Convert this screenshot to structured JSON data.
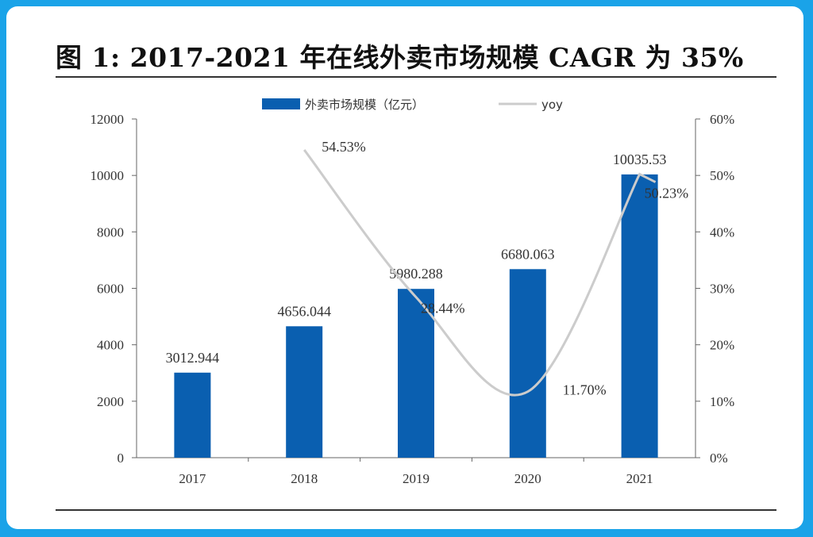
{
  "chart_data": {
    "type": "bar",
    "title": "图 1: 2017-2021 年在线外卖市场规模 CAGR 为 35%",
    "categories": [
      "2017",
      "2018",
      "2019",
      "2020",
      "2021"
    ],
    "series": [
      {
        "name": "外卖市场规模（亿元）",
        "type": "bar",
        "axis": "left",
        "values": [
          3012.944,
          4656.044,
          5980.288,
          6680.063,
          10035.53
        ],
        "labels": [
          "3012.944",
          "4656.044",
          "5980.288",
          "6680.063",
          "10035.53"
        ],
        "color": "#0a5fb0"
      },
      {
        "name": "yoy",
        "type": "line",
        "axis": "right",
        "values": [
          null,
          54.53,
          28.44,
          11.7,
          50.23
        ],
        "labels": [
          "",
          "54.53%",
          "28.44%",
          "11.70%",
          "50.23%"
        ],
        "color": "#cccccc"
      }
    ],
    "y_left": {
      "lim": [
        0,
        12000
      ],
      "ticks": [
        "0",
        "2000",
        "4000",
        "6000",
        "8000",
        "10000",
        "12000"
      ]
    },
    "y_right": {
      "lim": [
        0,
        60
      ],
      "ticks": [
        "0%",
        "10%",
        "20%",
        "30%",
        "40%",
        "50%",
        "60%"
      ]
    },
    "legend": "top-center",
    "grid": false
  }
}
